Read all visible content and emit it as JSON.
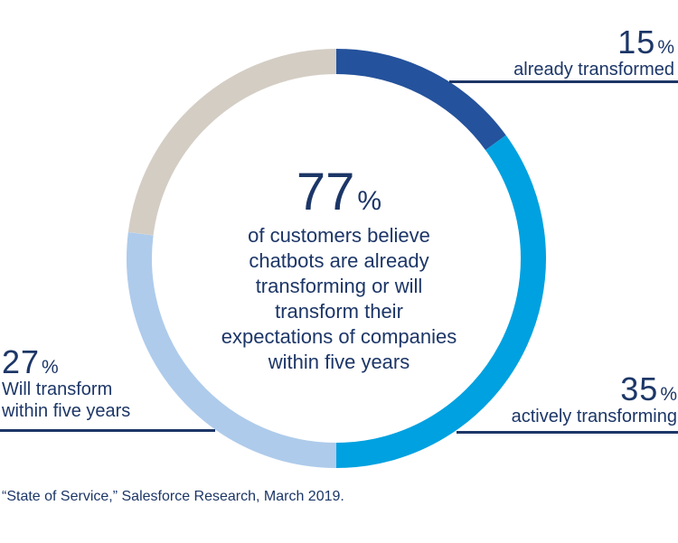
{
  "colors": {
    "background": "#ffffff",
    "text": "#1c3667",
    "underline": "#1c3667"
  },
  "chart_data": {
    "type": "pie",
    "variant": "donut",
    "start_angle_deg": 0,
    "direction": "clockwise",
    "units": "%",
    "legend_position": "callouts",
    "segments": [
      {
        "label": "already transformed",
        "value": 15,
        "color": "#24529c"
      },
      {
        "label": "actively transforming",
        "value": 35,
        "color": "#00a1e0"
      },
      {
        "label": "Will transform within five years",
        "value": 27,
        "color": "#aecbeb"
      },
      {
        "label": "",
        "value": 23,
        "color": "#d4cdc4"
      }
    ],
    "center_stat": {
      "value": "77",
      "unit": "%",
      "description_lines": [
        "of customers believe",
        "chatbots are already",
        "transforming or will",
        "transform their",
        "expectations of companies",
        "within five years"
      ]
    }
  },
  "callouts": {
    "top_right": {
      "value": "15",
      "unit": "%",
      "label": "already transformed"
    },
    "bottom_right": {
      "value": "35",
      "unit": "%",
      "label": "actively transforming"
    },
    "left": {
      "value": "27",
      "unit": "%",
      "label_line1": "Will transform",
      "label_line2": "within five years"
    }
  },
  "source": "“State of Service,” Salesforce Research, March 2019."
}
